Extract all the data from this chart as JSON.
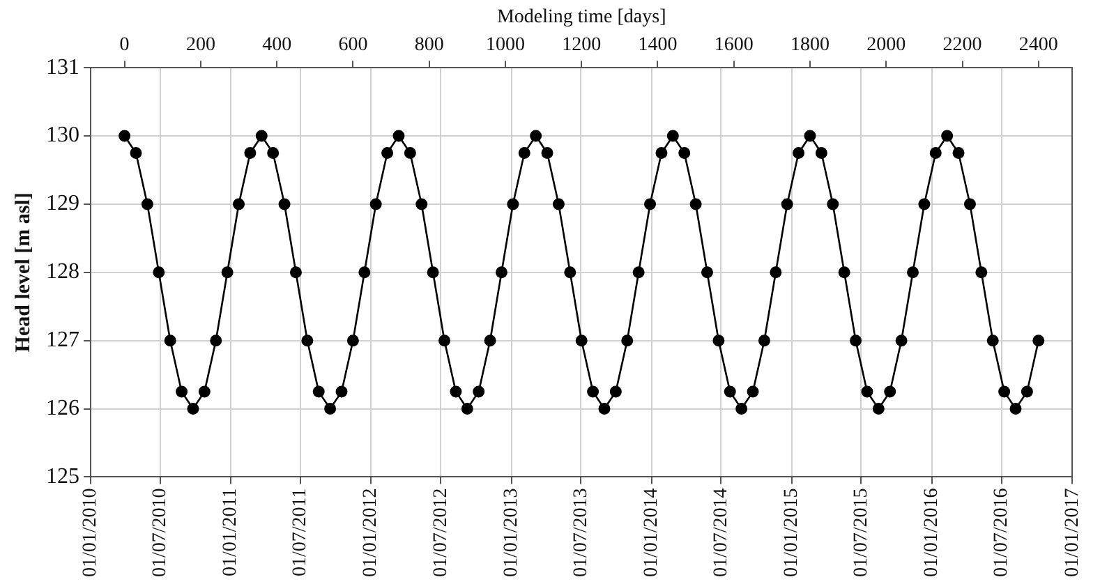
{
  "chart_data": {
    "type": "line",
    "ylabel": "Head level [m asl]",
    "x2label": "Modeling time [days]",
    "xlim": [
      "2010-01-01",
      "2017-01-01"
    ],
    "xticks": [
      {
        "value": "2010-01-01",
        "label": "01/01/2010"
      },
      {
        "value": "2010-07-01",
        "label": "01/07/2010"
      },
      {
        "value": "2011-01-01",
        "label": "01/01/2011"
      },
      {
        "value": "2011-07-01",
        "label": "01/07/2011"
      },
      {
        "value": "2012-01-01",
        "label": "01/01/2012"
      },
      {
        "value": "2012-07-01",
        "label": "01/07/2012"
      },
      {
        "value": "2013-01-01",
        "label": "01/01/2013"
      },
      {
        "value": "2013-07-01",
        "label": "01/07/2013"
      },
      {
        "value": "2014-01-01",
        "label": "01/01/2014"
      },
      {
        "value": "2014-07-01",
        "label": "01/07/2014"
      },
      {
        "value": "2015-01-01",
        "label": "01/01/2015"
      },
      {
        "value": "2015-07-01",
        "label": "01/07/2015"
      },
      {
        "value": "2016-01-01",
        "label": "01/01/2016"
      },
      {
        "value": "2016-07-01",
        "label": "01/07/2016"
      },
      {
        "value": "2017-01-01",
        "label": "01/01/2017"
      }
    ],
    "x2lim": [
      -89,
      2489
    ],
    "x2ticks": [
      0,
      200,
      400,
      600,
      800,
      1000,
      1200,
      1400,
      1600,
      1800,
      2000,
      2200,
      2400
    ],
    "ylim": [
      125,
      131
    ],
    "yticks": [
      125,
      126,
      127,
      128,
      129,
      130,
      131
    ],
    "grid": true,
    "marker": "circle",
    "line_style": "solid",
    "series": [
      {
        "color": "#000000",
        "axis": "x2",
        "x": [
          0,
          30,
          60,
          90,
          120,
          150,
          180,
          210,
          240,
          270,
          300,
          330,
          360,
          390,
          420,
          450,
          480,
          510,
          540,
          570,
          600,
          630,
          660,
          690,
          720,
          750,
          780,
          810,
          840,
          870,
          900,
          930,
          960,
          990,
          1020,
          1050,
          1080,
          1110,
          1140,
          1170,
          1200,
          1230,
          1260,
          1290,
          1320,
          1350,
          1380,
          1410,
          1440,
          1470,
          1500,
          1530,
          1560,
          1590,
          1620,
          1650,
          1680,
          1710,
          1740,
          1770,
          1800,
          1830,
          1860,
          1890,
          1920,
          1950,
          1980,
          2010,
          2040,
          2070,
          2100,
          2130,
          2160,
          2190,
          2220,
          2250,
          2280,
          2310,
          2340,
          2370,
          2400
        ],
        "values": [
          130,
          129.75,
          129,
          128,
          127,
          126.25,
          126,
          126.25,
          127,
          128,
          129,
          129.75,
          130,
          129.75,
          129,
          128,
          127,
          126.25,
          126,
          126.25,
          127,
          128,
          129,
          129.75,
          130,
          129.75,
          129,
          128,
          127,
          126.25,
          126,
          126.25,
          127,
          128,
          129,
          129.75,
          130,
          129.75,
          129,
          128,
          127,
          126.25,
          126,
          126.25,
          127,
          128,
          129,
          129.75,
          130,
          129.75,
          129,
          128,
          127,
          126.25,
          126,
          126.25,
          127,
          128,
          129,
          129.75,
          130,
          129.75,
          129,
          128,
          127,
          126.25,
          126,
          126.25,
          127,
          128,
          129,
          129.75,
          130,
          129.75,
          129,
          128,
          127,
          126.25,
          126,
          126.25,
          127
        ]
      }
    ]
  }
}
